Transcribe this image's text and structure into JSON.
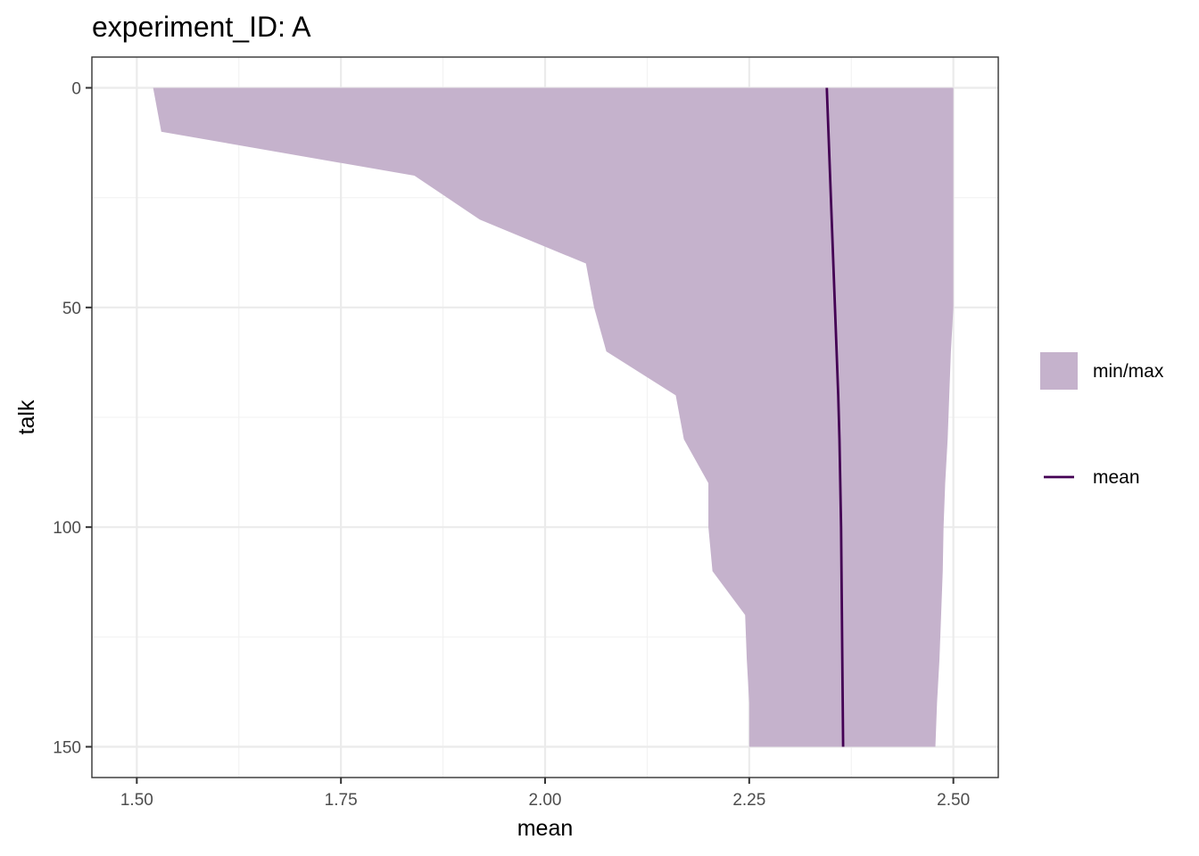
{
  "chart_data": {
    "type": "area",
    "title": "experiment_ID: A",
    "xlabel": "mean",
    "ylabel": "talk",
    "x_ticks": [
      "1.50",
      "1.75",
      "2.00",
      "2.25",
      "2.50"
    ],
    "y_ticks": [
      "0",
      "50",
      "100",
      "150"
    ],
    "xlim": [
      1.445,
      2.555
    ],
    "ylim": [
      157,
      -7
    ],
    "y_reversed": true,
    "grid": true,
    "legend_position": "right",
    "band": {
      "name": "min/max",
      "color": "#c5b2cc",
      "talk": [
        0,
        10,
        20,
        30,
        40,
        50,
        60,
        70,
        80,
        90,
        100,
        110,
        120,
        130,
        140,
        150
      ],
      "min": [
        1.52,
        1.53,
        1.84,
        1.92,
        2.05,
        2.06,
        2.075,
        2.16,
        2.17,
        2.2,
        2.2,
        2.205,
        2.245,
        2.247,
        2.25,
        2.25
      ],
      "max": [
        2.5,
        2.5,
        2.5,
        2.5,
        2.5,
        2.5,
        2.497,
        2.495,
        2.493,
        2.49,
        2.488,
        2.487,
        2.485,
        2.483,
        2.48,
        2.478
      ]
    },
    "series": [
      {
        "name": "mean",
        "color": "#440154",
        "talk": [
          0,
          10,
          20,
          30,
          40,
          50,
          60,
          70,
          80,
          90,
          100,
          110,
          120,
          130,
          140,
          150
        ],
        "values": [
          2.345,
          2.347,
          2.349,
          2.351,
          2.353,
          2.355,
          2.357,
          2.359,
          2.3605,
          2.3615,
          2.3625,
          2.363,
          2.3635,
          2.364,
          2.3645,
          2.365
        ]
      }
    ]
  },
  "legend": {
    "items": [
      {
        "label": "min/max",
        "kind": "area",
        "color": "#c5b2cc"
      },
      {
        "label": "mean",
        "kind": "line",
        "color": "#440154"
      }
    ]
  }
}
